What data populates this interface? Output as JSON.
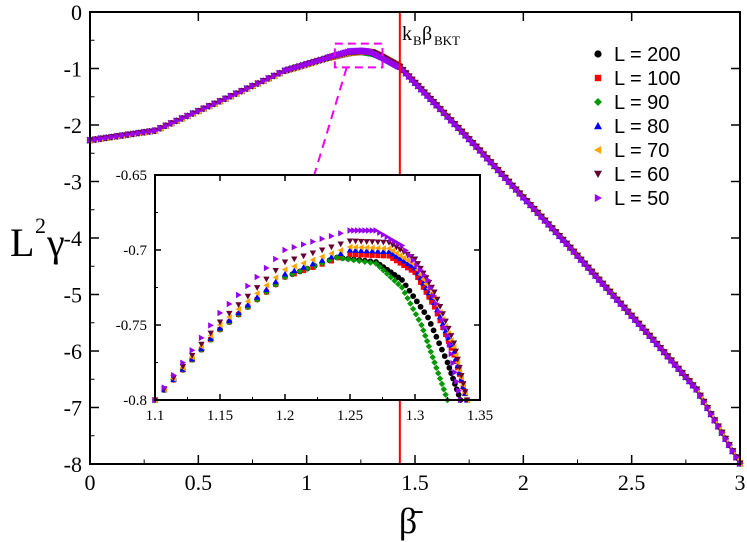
{
  "chart_data": [
    {
      "type": "scatter",
      "role": "main",
      "title": "",
      "xlabel": "β̄",
      "ylabel_base": "L",
      "ylabel_exp": "2",
      "ylabel_sym": "γ",
      "xlim": [
        0,
        3
      ],
      "ylim": [
        -8,
        0
      ],
      "xticks": [
        {
          "v": 0,
          "label": "0"
        },
        {
          "v": 0.5,
          "label": "0.5"
        },
        {
          "v": 1,
          "label": "1"
        },
        {
          "v": 1.5,
          "label": "1.5"
        },
        {
          "v": 2,
          "label": "2"
        },
        {
          "v": 2.5,
          "label": "2.5"
        },
        {
          "v": 3,
          "label": "3"
        }
      ],
      "yticks": [
        {
          "v": 0,
          "label": "0"
        },
        {
          "v": -1,
          "label": "-1"
        },
        {
          "v": -2,
          "label": "-2"
        },
        {
          "v": -3,
          "label": "-3"
        },
        {
          "v": -4,
          "label": "-4"
        },
        {
          "v": -5,
          "label": "-5"
        },
        {
          "v": -6,
          "label": "-6"
        },
        {
          "v": -7,
          "label": "-7"
        },
        {
          "v": -8,
          "label": "-8"
        }
      ],
      "grid": false,
      "legend_position": "top-right",
      "vline": {
        "x": 1.43,
        "color": "#ff0000",
        "label_base": "k",
        "label_sub1": "B",
        "label_mid": "β",
        "label_sub2": "BKT"
      },
      "zoom_box": {
        "x": [
          1.13,
          1.35
        ],
        "y": [
          -0.98,
          -0.56
        ],
        "color": "#ee00ee"
      },
      "series": [
        {
          "name": "L = 200",
          "color": "#000000",
          "marker": "circle",
          "x": [
            0.0,
            0.3,
            0.6,
            0.9,
            1.1,
            1.2,
            1.25,
            1.3,
            1.35,
            1.43,
            1.6,
            1.8,
            2.0,
            2.2,
            2.4,
            2.6,
            2.8,
            3.0
          ],
          "y": [
            -2.27,
            -2.1,
            -1.58,
            -1.04,
            -0.81,
            -0.725,
            -0.705,
            -0.728,
            -0.8,
            -0.97,
            -1.65,
            -2.45,
            -3.28,
            -4.1,
            -4.95,
            -5.8,
            -6.68,
            -7.99
          ]
        },
        {
          "name": "L = 100",
          "color": "#ff0000",
          "marker": "square",
          "x": [
            0.0,
            0.3,
            0.6,
            0.9,
            1.1,
            1.2,
            1.26,
            1.3,
            1.35,
            1.43,
            1.6,
            1.8,
            2.0,
            2.2,
            2.4,
            2.6,
            2.8,
            3.0
          ],
          "y": [
            -2.27,
            -2.1,
            -1.58,
            -1.04,
            -0.81,
            -0.724,
            -0.704,
            -0.718,
            -0.8,
            -0.97,
            -1.65,
            -2.45,
            -3.28,
            -4.1,
            -4.95,
            -5.8,
            -6.68,
            -7.99
          ]
        },
        {
          "name": "L = 90",
          "color": "#009900",
          "marker": "diamond",
          "x": [
            0.0,
            0.3,
            0.6,
            0.9,
            1.1,
            1.2,
            1.25,
            1.3,
            1.35,
            1.43,
            1.6,
            1.8,
            2.0,
            2.2,
            2.4,
            2.6,
            2.8,
            3.0
          ],
          "y": [
            -2.27,
            -2.1,
            -1.58,
            -1.04,
            -0.81,
            -0.725,
            -0.706,
            -0.735,
            -0.8,
            -0.97,
            -1.65,
            -2.45,
            -3.28,
            -4.1,
            -4.95,
            -5.8,
            -6.68,
            -7.99
          ]
        },
        {
          "name": "L = 80",
          "color": "#0000ff",
          "marker": "triangle-up",
          "x": [
            0.0,
            0.3,
            0.6,
            0.9,
            1.1,
            1.2,
            1.26,
            1.3,
            1.35,
            1.43,
            1.6,
            1.8,
            2.0,
            2.2,
            2.4,
            2.6,
            2.8,
            3.0
          ],
          "y": [
            -2.27,
            -2.1,
            -1.58,
            -1.04,
            -0.81,
            -0.72,
            -0.701,
            -0.714,
            -0.8,
            -0.97,
            -1.65,
            -2.45,
            -3.28,
            -4.1,
            -4.95,
            -5.8,
            -6.68,
            -7.99
          ]
        },
        {
          "name": "L = 70",
          "color": "#ffa500",
          "marker": "triangle-left",
          "x": [
            0.0,
            0.3,
            0.6,
            0.9,
            1.1,
            1.2,
            1.26,
            1.3,
            1.35,
            1.43,
            1.6,
            1.8,
            2.0,
            2.2,
            2.4,
            2.6,
            2.8,
            3.0
          ],
          "y": [
            -2.27,
            -2.1,
            -1.58,
            -1.04,
            -0.81,
            -0.717,
            -0.699,
            -0.712,
            -0.8,
            -0.97,
            -1.65,
            -2.45,
            -3.28,
            -4.1,
            -4.95,
            -5.8,
            -6.68,
            -7.99
          ]
        },
        {
          "name": "L = 60",
          "color": "#660033",
          "marker": "triangle-down",
          "x": [
            0.0,
            0.3,
            0.6,
            0.9,
            1.1,
            1.2,
            1.26,
            1.3,
            1.35,
            1.43,
            1.6,
            1.8,
            2.0,
            2.2,
            2.4,
            2.6,
            2.8,
            3.0
          ],
          "y": [
            -2.27,
            -2.1,
            -1.58,
            -1.04,
            -0.81,
            -0.71,
            -0.695,
            -0.708,
            -0.8,
            -0.97,
            -1.65,
            -2.45,
            -3.28,
            -4.1,
            -4.95,
            -5.8,
            -6.68,
            -7.99
          ]
        },
        {
          "name": "L = 50",
          "color": "#9900ee",
          "marker": "triangle-right",
          "x": [
            0.0,
            0.3,
            0.6,
            0.9,
            1.1,
            1.2,
            1.26,
            1.3,
            1.35,
            1.43,
            1.6,
            1.8,
            2.0,
            2.2,
            2.4,
            2.6,
            2.8,
            3.0
          ],
          "y": [
            -2.27,
            -2.1,
            -1.58,
            -1.04,
            -0.81,
            -0.698,
            -0.687,
            -0.7,
            -0.8,
            -0.97,
            -1.65,
            -2.45,
            -3.28,
            -4.1,
            -4.95,
            -5.8,
            -6.68,
            -7.99
          ]
        }
      ]
    },
    {
      "type": "scatter",
      "role": "inset",
      "title": "",
      "xlim": [
        1.1,
        1.35
      ],
      "ylim": [
        -0.8,
        -0.65
      ],
      "xticks": [
        {
          "v": 1.1,
          "label": "1.1"
        },
        {
          "v": 1.15,
          "label": "1.15"
        },
        {
          "v": 1.2,
          "label": "1.2"
        },
        {
          "v": 1.25,
          "label": "1.25"
        },
        {
          "v": 1.3,
          "label": "1.3"
        },
        {
          "v": 1.35,
          "label": "1.35"
        }
      ],
      "yticks": [
        {
          "v": -0.65,
          "label": "-0.65"
        },
        {
          "v": -0.7,
          "label": "-0.7"
        },
        {
          "v": -0.75,
          "label": "-0.75"
        },
        {
          "v": -0.8,
          "label": "-0.8"
        }
      ],
      "grid": false,
      "series": [
        {
          "name": "L = 200",
          "color": "#000000",
          "marker": "circle",
          "x": [
            1.1,
            1.15,
            1.2,
            1.24,
            1.27,
            1.29,
            1.31,
            1.325,
            1.335
          ],
          "y": [
            -0.8,
            -0.753,
            -0.718,
            -0.705,
            -0.708,
            -0.72,
            -0.745,
            -0.775,
            -0.8
          ]
        },
        {
          "name": "L = 100",
          "color": "#ff0000",
          "marker": "square",
          "x": [
            1.1,
            1.15,
            1.2,
            1.25,
            1.28,
            1.3,
            1.315,
            1.33,
            1.34
          ],
          "y": [
            -0.8,
            -0.753,
            -0.718,
            -0.703,
            -0.704,
            -0.715,
            -0.738,
            -0.77,
            -0.8
          ]
        },
        {
          "name": "L = 90",
          "color": "#009900",
          "marker": "diamond",
          "x": [
            1.1,
            1.15,
            1.2,
            1.24,
            1.27,
            1.29,
            1.305,
            1.315,
            1.325
          ],
          "y": [
            -0.8,
            -0.753,
            -0.718,
            -0.705,
            -0.709,
            -0.725,
            -0.75,
            -0.775,
            -0.8
          ]
        },
        {
          "name": "L = 80",
          "color": "#0000ff",
          "marker": "triangle-up",
          "x": [
            1.1,
            1.15,
            1.2,
            1.25,
            1.28,
            1.3,
            1.315,
            1.33,
            1.34
          ],
          "y": [
            -0.8,
            -0.752,
            -0.716,
            -0.7,
            -0.701,
            -0.712,
            -0.735,
            -0.768,
            -0.8
          ]
        },
        {
          "name": "L = 70",
          "color": "#ffa500",
          "marker": "triangle-left",
          "x": [
            1.1,
            1.15,
            1.2,
            1.25,
            1.28,
            1.3,
            1.315,
            1.33,
            1.34
          ],
          "y": [
            -0.8,
            -0.75,
            -0.713,
            -0.698,
            -0.699,
            -0.71,
            -0.732,
            -0.765,
            -0.8
          ]
        },
        {
          "name": "L = 60",
          "color": "#660033",
          "marker": "triangle-down",
          "x": [
            1.1,
            1.15,
            1.2,
            1.25,
            1.28,
            1.3,
            1.315,
            1.33,
            1.34
          ],
          "y": [
            -0.8,
            -0.748,
            -0.708,
            -0.694,
            -0.695,
            -0.706,
            -0.728,
            -0.762,
            -0.8
          ]
        },
        {
          "name": "L = 50",
          "color": "#9900ee",
          "marker": "triangle-right",
          "x": [
            1.1,
            1.15,
            1.2,
            1.25,
            1.27,
            1.29,
            1.31,
            1.325,
            1.335
          ],
          "y": [
            -0.8,
            -0.742,
            -0.7,
            -0.687,
            -0.687,
            -0.697,
            -0.72,
            -0.757,
            -0.8
          ]
        }
      ]
    }
  ]
}
